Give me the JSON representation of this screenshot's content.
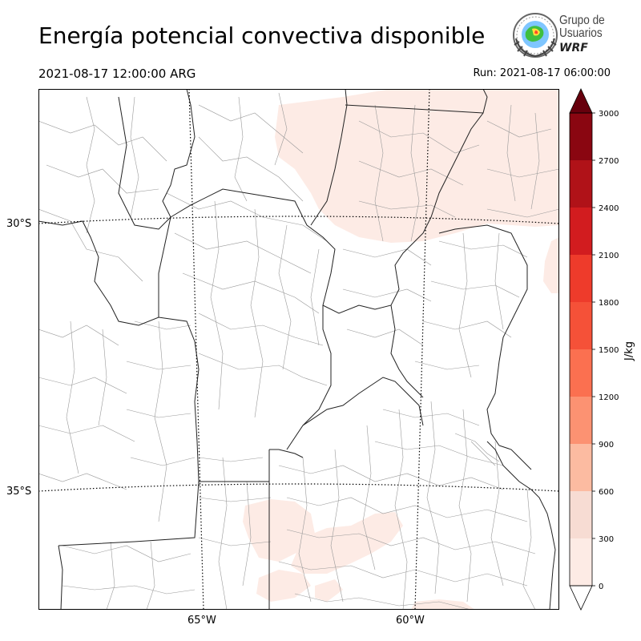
{
  "header": {
    "title": "Energía potencial convectiva disponible",
    "valid_time": "2021-08-17 12:00:00 ARG",
    "run_time": "Run: 2021-08-17 06:00:00"
  },
  "logo": {
    "line1": "Grupo de",
    "line2": "Usuarios",
    "line3": "WRF"
  },
  "map": {
    "lat_labels": [
      "30°S",
      "35°S"
    ],
    "lon_labels": [
      "65°W",
      "60°W"
    ]
  },
  "colorbar": {
    "units": "J/kg",
    "ticks": [
      "0",
      "300",
      "600",
      "900",
      "1200",
      "1500",
      "1800",
      "2100",
      "2400",
      "2700",
      "3000"
    ],
    "colors": [
      "#fdebe5",
      "#f7dcd3",
      "#fcbba1",
      "#fc9272",
      "#fb7050",
      "#f55138",
      "#ee3b2b",
      "#d21c1f",
      "#b01218",
      "#8a0611",
      "#7a0510"
    ],
    "under_color": "#ffffff",
    "over_color": "#67000d"
  },
  "colors": {
    "low_cape": "#fdebe5",
    "border": "#000000"
  }
}
